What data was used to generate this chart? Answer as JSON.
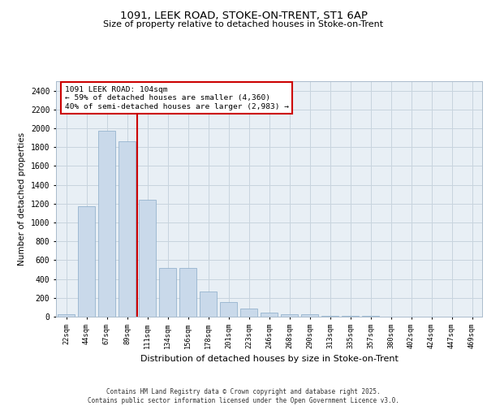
{
  "title1": "1091, LEEK ROAD, STOKE-ON-TRENT, ST1 6AP",
  "title2": "Size of property relative to detached houses in Stoke-on-Trent",
  "xlabel": "Distribution of detached houses by size in Stoke-on-Trent",
  "ylabel": "Number of detached properties",
  "categories": [
    "22sqm",
    "44sqm",
    "67sqm",
    "89sqm",
    "111sqm",
    "134sqm",
    "156sqm",
    "178sqm",
    "201sqm",
    "223sqm",
    "246sqm",
    "268sqm",
    "290sqm",
    "313sqm",
    "335sqm",
    "357sqm",
    "380sqm",
    "402sqm",
    "424sqm",
    "447sqm",
    "469sqm"
  ],
  "values": [
    25,
    1175,
    1975,
    1860,
    1245,
    515,
    515,
    270,
    155,
    85,
    45,
    28,
    28,
    10,
    5,
    5,
    3,
    2,
    2,
    2,
    2
  ],
  "bar_color": "#c9d9ea",
  "bar_edge_color": "#88aac8",
  "grid_color": "#c8d4de",
  "bg_color": "#e8eff5",
  "red_line_index": 3.5,
  "annotation_text": "1091 LEEK ROAD: 104sqm\n← 59% of detached houses are smaller (4,360)\n40% of semi-detached houses are larger (2,983) →",
  "annotation_box_color": "#ffffff",
  "annotation_box_edge": "#cc0000",
  "red_line_color": "#cc0000",
  "footer1": "Contains HM Land Registry data © Crown copyright and database right 2025.",
  "footer2": "Contains public sector information licensed under the Open Government Licence v3.0.",
  "ylim": [
    0,
    2500
  ],
  "yticks": [
    0,
    200,
    400,
    600,
    800,
    1000,
    1200,
    1400,
    1600,
    1800,
    2000,
    2200,
    2400
  ]
}
